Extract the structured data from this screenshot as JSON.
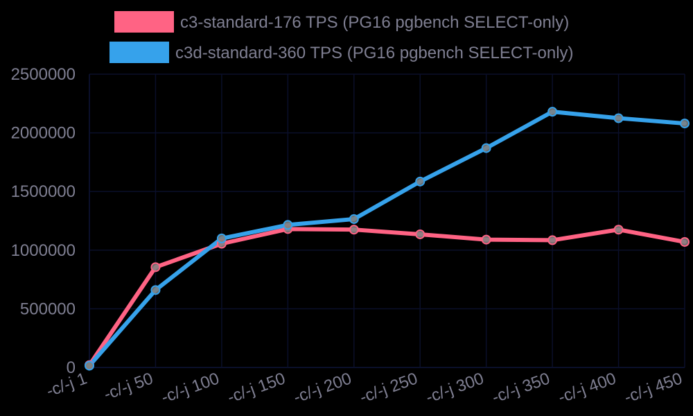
{
  "chart_data": {
    "type": "line",
    "title": "",
    "xlabel": "",
    "ylabel": "",
    "categories": [
      "-c/-j 1",
      "-c/-j 50",
      "-c/-j 100",
      "-c/-j 150",
      "-c/-j 200",
      "-c/-j 250",
      "-c/-j 300",
      "-c/-j 350",
      "-c/-j 400",
      "-c/-j 450"
    ],
    "ylim": [
      0,
      2500000
    ],
    "y_ticks": [
      0,
      500000,
      1000000,
      1500000,
      2000000,
      2500000
    ],
    "grid": true,
    "legend": "top-center",
    "series": [
      {
        "name": "c3-standard-176 TPS (PG16 pgbench SELECT-only)",
        "color": "#ff6384",
        "values": [
          20000,
          855000,
          1055000,
          1180000,
          1175000,
          1135000,
          1090000,
          1085000,
          1175000,
          1070000
        ]
      },
      {
        "name": "c3d-standard-360 TPS (PG16 pgbench SELECT-only)",
        "color": "#36a2eb",
        "values": [
          15000,
          660000,
          1100000,
          1215000,
          1265000,
          1585000,
          1870000,
          2180000,
          2125000,
          2080000
        ]
      }
    ],
    "colors": {
      "background": "#000000",
      "grid": "#0a0f2a",
      "axis_text": "#7f7f92",
      "marker_fill": "#808080"
    }
  }
}
